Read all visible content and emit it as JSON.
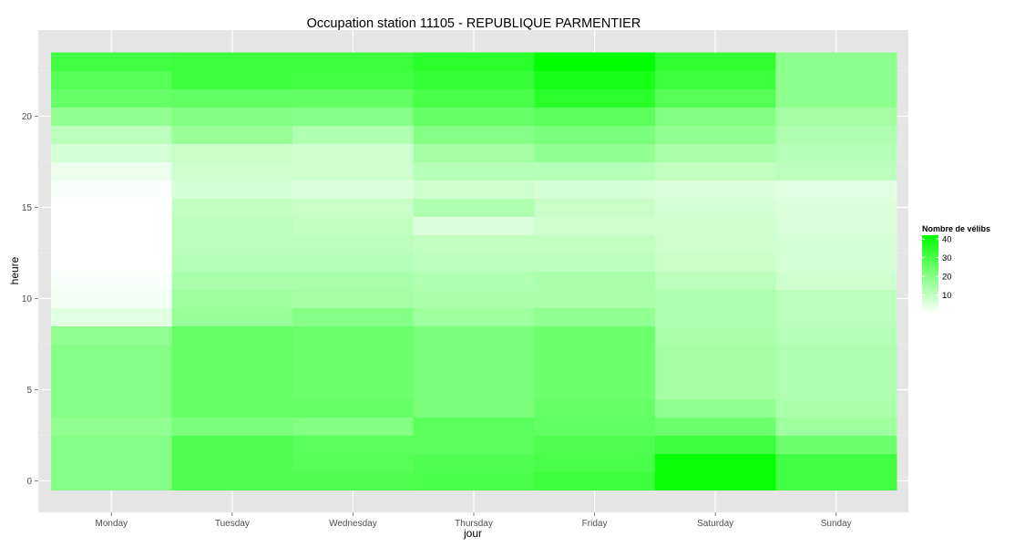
{
  "chart_data": {
    "type": "heatmap",
    "title": "Occupation station 11105 - REPUBLIQUE PARMENTIER",
    "xlabel": "jour",
    "ylabel": "heure",
    "x_categories": [
      "Monday",
      "Tuesday",
      "Wednesday",
      "Thursday",
      "Friday",
      "Saturday",
      "Sunday"
    ],
    "y_values": [
      0,
      1,
      2,
      3,
      4,
      5,
      6,
      7,
      8,
      9,
      10,
      11,
      12,
      13,
      14,
      15,
      16,
      17,
      18,
      19,
      20,
      21,
      22,
      23
    ],
    "y_ticks": [
      0,
      5,
      10,
      15,
      20
    ],
    "values": [
      [
        20,
        29,
        29,
        30,
        32,
        41,
        31
      ],
      [
        20,
        29,
        28,
        29,
        30,
        41,
        31
      ],
      [
        20,
        29,
        27,
        27,
        29,
        32,
        24
      ],
      [
        18,
        22,
        21,
        27,
        26,
        24,
        16
      ],
      [
        20,
        25,
        25,
        22,
        25,
        18,
        14
      ],
      [
        20,
        25,
        24,
        22,
        24,
        15,
        13
      ],
      [
        20,
        25,
        24,
        22,
        24,
        15,
        13
      ],
      [
        20,
        25,
        24,
        22,
        24,
        15,
        13
      ],
      [
        18,
        25,
        24,
        22,
        24,
        14,
        12
      ],
      [
        5,
        17,
        20,
        16,
        18,
        13,
        11
      ],
      [
        2,
        16,
        15,
        14,
        14,
        13,
        11
      ],
      [
        1,
        14,
        14,
        13,
        14,
        11,
        8
      ],
      [
        0,
        12,
        12,
        11,
        11,
        9,
        7
      ],
      [
        0,
        11,
        11,
        10,
        10,
        8,
        7
      ],
      [
        0,
        11,
        10,
        6,
        8,
        8,
        6
      ],
      [
        0,
        10,
        9,
        13,
        9,
        7,
        6
      ],
      [
        1,
        7,
        6,
        8,
        7,
        6,
        5
      ],
      [
        3,
        8,
        8,
        12,
        12,
        10,
        11
      ],
      [
        7,
        9,
        8,
        15,
        18,
        14,
        12
      ],
      [
        11,
        17,
        13,
        20,
        22,
        18,
        13
      ],
      [
        18,
        21,
        20,
        25,
        27,
        21,
        15
      ],
      [
        25,
        26,
        26,
        30,
        35,
        28,
        19
      ],
      [
        28,
        32,
        31,
        33,
        38,
        32,
        19
      ],
      [
        31,
        32,
        32,
        35,
        42,
        34,
        19
      ]
    ],
    "color_scale": {
      "low": "#ffffff",
      "high": "#00ff00",
      "min": 0,
      "max": 42
    },
    "legend": {
      "title": "Nombre de vélibs",
      "ticks": [
        10,
        20,
        30,
        40
      ],
      "placement": "right"
    },
    "grid": true,
    "panel_background": "#e5e5e5"
  }
}
